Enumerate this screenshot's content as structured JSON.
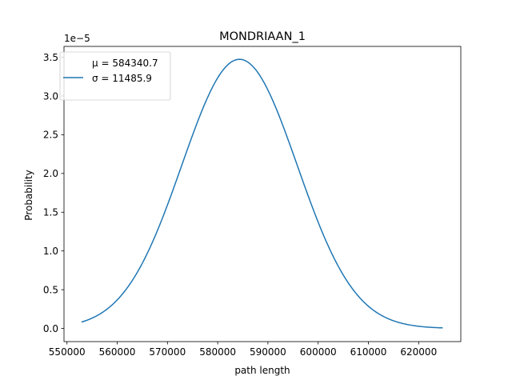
{
  "chart_data": {
    "type": "line",
    "title": "MONDRIAAN_1",
    "xlabel": "path length",
    "ylabel": "Probability",
    "y_offset_label": "1e−5",
    "y_scale": 1e-05,
    "xlim": [
      549410,
      628390
    ],
    "ylim": [
      -0.17,
      3.64
    ],
    "x_ticks": [
      550000,
      560000,
      570000,
      580000,
      590000,
      600000,
      610000,
      620000
    ],
    "y_ticks": [
      0.0,
      0.5,
      1.0,
      1.5,
      2.0,
      2.5,
      3.0,
      3.5
    ],
    "x_tick_labels": [
      "550000",
      "560000",
      "570000",
      "580000",
      "590000",
      "600000",
      "610000",
      "620000"
    ],
    "y_tick_labels": [
      "0.0",
      "0.5",
      "1.0",
      "1.5",
      "2.0",
      "2.5",
      "3.0",
      "3.5"
    ],
    "grid": false,
    "legend": {
      "placement": "upper-left",
      "entries": [
        {
          "label": "μ = 584340.7",
          "has_line": false
        },
        {
          "label": "σ = 11485.9",
          "has_line": true
        }
      ]
    },
    "series": [
      {
        "mu": 584340.7,
        "sigma": 11485.9,
        "x_range": [
          552900,
          624800
        ],
        "color": "#1f77b4"
      }
    ]
  }
}
